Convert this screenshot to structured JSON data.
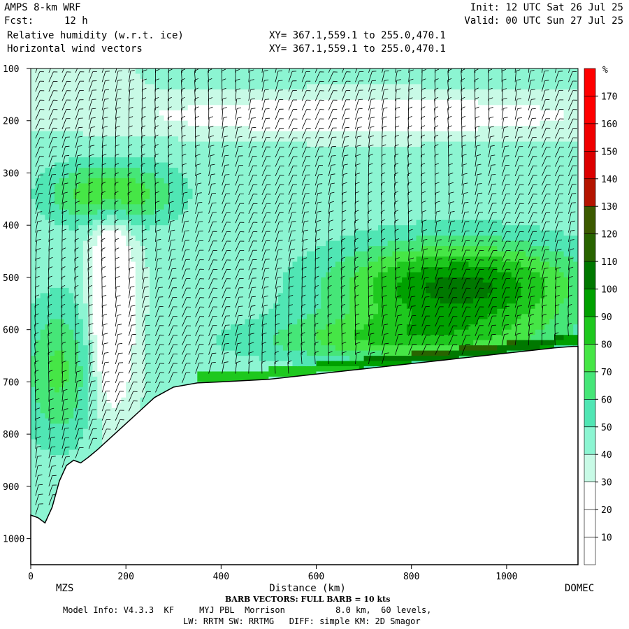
{
  "header": {
    "model": "AMPS 8-km WRF",
    "forecast_label": "Fcst:",
    "forecast_value": "12 h",
    "field1": "Relative humidity (w.r.t. ice)",
    "field2": "Horizontal wind vectors",
    "init": "Init: 12 UTC Sat 26 Jul 25",
    "valid": "Valid: 00 UTC Sun 27 Jul 25",
    "xy1": "XY= 367.1,559.1 to 255.0,470.1",
    "xy2": "XY= 367.1,559.1 to 255.0,470.1"
  },
  "footer": {
    "start_station": "MZS",
    "end_station": "DOMEC",
    "barb_note": "BARB VECTORS: FULL BARB = 10 kts",
    "model_info": "Model Info: V4.3.3  KF     MYJ PBL  Morrison          8.0 km,  60 levels,",
    "physics": "LW: RRTM SW: RRTMG   DIFF: simple KM: 2D Smagor"
  },
  "colors": {
    "rh_scale": [
      "#ffffff",
      "#ffffff",
      "#ffffff",
      "#c8fae6",
      "#8cf5d2",
      "#50e6b4",
      "#46e678",
      "#46e646",
      "#1ec81e",
      "#00a000",
      "#007800",
      "#286400",
      "#3c5a00",
      "#b41400",
      "#dc0000",
      "#f00000",
      "#ff0000",
      "#ff0000"
    ],
    "terrain_fill": "#ffffff",
    "barb": "#000000"
  },
  "chart_data": {
    "type": "heatmap",
    "title": "Relative humidity (w.r.t. ice)",
    "xlabel": "Distance (km)",
    "ylabel": "",
    "xlim": [
      0,
      1150
    ],
    "ylim": [
      1050,
      100
    ],
    "x_ticks": [
      0,
      200,
      400,
      600,
      800,
      1000
    ],
    "y_ticks": [
      100,
      200,
      300,
      400,
      500,
      600,
      700,
      800,
      900,
      1000
    ],
    "colorbar": {
      "unit": "%",
      "levels": [
        10,
        20,
        30,
        40,
        50,
        60,
        70,
        80,
        90,
        100,
        110,
        120,
        130,
        140,
        150,
        160,
        170
      ]
    },
    "terrain_surface": {
      "distance_km": [
        0,
        15,
        30,
        45,
        60,
        75,
        90,
        105,
        120,
        140,
        170,
        200,
        230,
        260,
        300,
        350,
        400,
        500,
        600,
        700,
        800,
        900,
        1000,
        1100,
        1140
      ],
      "pressure_hpa": [
        955,
        960,
        970,
        940,
        890,
        860,
        850,
        855,
        845,
        830,
        805,
        780,
        755,
        730,
        710,
        702,
        700,
        695,
        685,
        675,
        665,
        655,
        645,
        635,
        632
      ]
    }
  }
}
